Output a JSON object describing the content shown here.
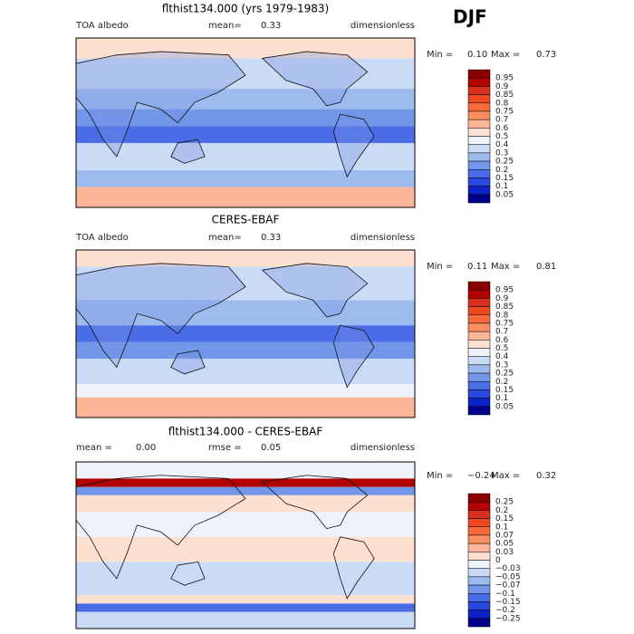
{
  "season": "DJF",
  "panels": [
    {
      "title": "flthist134.000 (yrs 1979-1983)",
      "header": [
        "TOA albedo",
        "mean=",
        "0.33",
        "dimensionless"
      ],
      "stats": [
        "Min =",
        "0.10",
        "Max =",
        "0.73"
      ],
      "colorbar": {
        "levels": [
          "0.95",
          "0.9",
          "0.85",
          "0.8",
          "0.75",
          "0.7",
          "0.6",
          "0.5",
          "0.4",
          "0.3",
          "0.25",
          "0.2",
          "0.15",
          "0.1",
          "0.05"
        ],
        "colors": [
          "#8b0000",
          "#b30000",
          "#d7301f",
          "#ef4a1f",
          "#f76a3a",
          "#fb8f60",
          "#fcb596",
          "#fde0d0",
          "#eef3fb",
          "#c9dbf5",
          "#9dbbef",
          "#7296e8",
          "#4a6ce6",
          "#2a48e0",
          "#0a22c8",
          "#00008b"
        ]
      }
    },
    {
      "title": "CERES-EBAF",
      "header": [
        "TOA albedo",
        "mean=",
        "0.33",
        "dimensionless"
      ],
      "stats": [
        "Min =",
        "0.11",
        "Max =",
        "0.81"
      ],
      "colorbar": {
        "levels": [
          "0.95",
          "0.9",
          "0.85",
          "0.8",
          "0.75",
          "0.7",
          "0.6",
          "0.5",
          "0.4",
          "0.3",
          "0.25",
          "0.2",
          "0.15",
          "0.1",
          "0.05"
        ],
        "colors": [
          "#8b0000",
          "#b30000",
          "#d7301f",
          "#ef4a1f",
          "#f76a3a",
          "#fb8f60",
          "#fcb596",
          "#fde0d0",
          "#eef3fb",
          "#c9dbf5",
          "#9dbbef",
          "#7296e8",
          "#4a6ce6",
          "#2a48e0",
          "#0a22c8",
          "#00008b"
        ]
      }
    },
    {
      "title": "flthist134.000 - CERES-EBAF",
      "header": [
        "mean =",
        "0.00",
        "rmse =",
        "0.05",
        "dimensionless"
      ],
      "stats": [
        "Min =",
        "−0.24",
        "Max =",
        "0.32"
      ],
      "colorbar": {
        "levels": [
          "0.25",
          "0.2",
          "0.15",
          "0.1",
          "0.07",
          "0.05",
          "0.03",
          "0",
          "−0.03",
          "−0.05",
          "−0.07",
          "−0.1",
          "−0.15",
          "−0.2",
          "−0.25"
        ],
        "colors": [
          "#8b0000",
          "#b30000",
          "#d7301f",
          "#ef4a1f",
          "#f76a3a",
          "#fb8f60",
          "#fcb596",
          "#fde0d0",
          "#eef3fb",
          "#c9dbf5",
          "#9dbbef",
          "#7296e8",
          "#4a6ce6",
          "#2a48e0",
          "#0a22c8",
          "#00008b"
        ]
      }
    }
  ]
}
